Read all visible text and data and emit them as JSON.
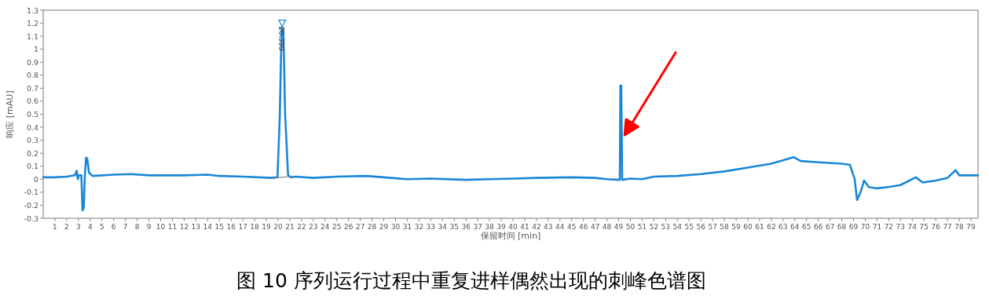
{
  "chart_data": {
    "type": "line",
    "title": "图 10  序列运行过程中重复进样偶然出现的刺峰色谱图",
    "xlabel": "保留时间 [min]",
    "ylabel": "响应 [mAU]",
    "xlim": [
      0,
      79.6
    ],
    "ylim": [
      -0.3,
      1.3
    ],
    "xticks": [
      1,
      2,
      3,
      4,
      5,
      6,
      7,
      8,
      9,
      10,
      11,
      12,
      13,
      14,
      15,
      16,
      17,
      18,
      19,
      20,
      21,
      22,
      23,
      24,
      25,
      26,
      27,
      28,
      29,
      30,
      31,
      32,
      33,
      34,
      35,
      36,
      37,
      38,
      39,
      40,
      41,
      42,
      43,
      44,
      45,
      46,
      47,
      48,
      49,
      50,
      51,
      52,
      53,
      54,
      55,
      56,
      57,
      58,
      59,
      60,
      61,
      62,
      63,
      64,
      65,
      66,
      67,
      68,
      69,
      70,
      71,
      72,
      73,
      74,
      75,
      76,
      77,
      78,
      79
    ],
    "yticks": [
      -0.3,
      -0.2,
      -0.1,
      0,
      0.1,
      0.2,
      0.3,
      0.4,
      0.5,
      0.6,
      0.7,
      0.8,
      0.9,
      1,
      1.1,
      1.2,
      1.3
    ],
    "series": [
      {
        "color": "#1a87d6",
        "x": [
          0,
          1,
          2,
          2.7,
          2.85,
          2.95,
          3.05,
          3.25,
          3.35,
          3.45,
          3.55,
          3.65,
          3.75,
          3.9,
          4.2,
          6,
          7.5,
          9,
          12,
          14,
          15,
          17,
          19.5,
          19.95,
          20.15,
          20.3,
          20.45,
          20.6,
          20.85,
          21.1,
          21.5,
          23,
          25,
          27.5,
          29,
          31,
          33,
          36,
          38,
          40,
          42,
          45,
          47,
          48,
          49.1,
          49.15,
          49.22,
          49.25,
          49.3,
          50,
          51,
          52,
          54,
          56,
          58,
          60,
          62,
          63.9,
          64.5,
          66,
          68,
          68.7,
          69.1,
          69.3,
          69.6,
          69.9,
          70.3,
          71,
          72,
          73,
          74.3,
          74.9,
          76,
          77,
          77.7,
          78,
          79.6
        ],
        "values": [
          0.015,
          0.015,
          0.02,
          0.03,
          0.065,
          0.0,
          0.03,
          0.03,
          -0.24,
          -0.22,
          0.03,
          0.165,
          0.16,
          0.05,
          0.025,
          0.035,
          0.04,
          0.03,
          0.03,
          0.035,
          0.025,
          0.02,
          0.01,
          0.015,
          0.5,
          1.17,
          1.15,
          0.5,
          0.03,
          0.015,
          0.02,
          0.01,
          0.02,
          0.025,
          0.015,
          0.0,
          0.005,
          -0.005,
          0.0,
          0.005,
          0.01,
          0.015,
          0.01,
          0.0,
          -0.005,
          0.72,
          0.72,
          0.48,
          -0.005,
          0.005,
          0.0,
          0.02,
          0.025,
          0.04,
          0.06,
          0.09,
          0.12,
          0.17,
          0.14,
          0.13,
          0.12,
          0.11,
          0.0,
          -0.16,
          -0.1,
          -0.01,
          -0.06,
          -0.07,
          -0.06,
          -0.045,
          0.015,
          -0.025,
          -0.01,
          0.01,
          0.07,
          0.03,
          0.03
        ]
      },
      {
        "color": "#808080",
        "x": [
          19.7,
          21.0
        ],
        "values": [
          0.01,
          0.02
        ]
      },
      {
        "type": "scatter",
        "marker": "triangle",
        "color": "#1a87d6",
        "x": [
          20.35
        ],
        "values": [
          1.2
        ]
      }
    ],
    "annotations": [
      {
        "text": "20.399",
        "x": 20.3,
        "y": 1.17
      }
    ]
  }
}
